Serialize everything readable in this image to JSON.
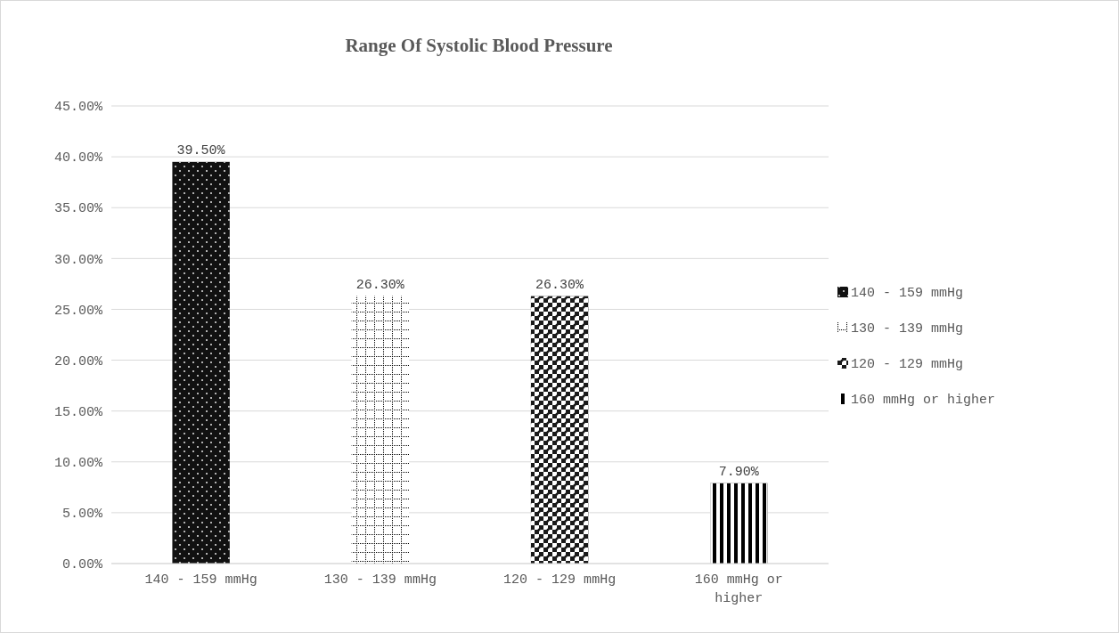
{
  "chart_data": {
    "type": "bar",
    "title": "Range Of Systolic Blood Pressure",
    "categories": [
      "140 - 159 mmHg",
      "130 - 139 mmHg",
      "120 - 129 mmHg",
      "160 mmHg or higher"
    ],
    "series": [
      {
        "name": "140 - 159 mmHg",
        "color": "#111111",
        "values": [
          39.5,
          null,
          null,
          null
        ],
        "value_labels": [
          "39.50%",
          null,
          null,
          null
        ]
      },
      {
        "name": "130 - 139 mmHg",
        "color": "#ffffff",
        "values": [
          null,
          26.3,
          null,
          null
        ],
        "value_labels": [
          null,
          "26.30%",
          null,
          null
        ]
      },
      {
        "name": "120 - 129 mmHg",
        "color": "#1a1a1a",
        "values": [
          null,
          null,
          26.3,
          null
        ],
        "value_labels": [
          null,
          null,
          "26.30%",
          null
        ]
      },
      {
        "name": "160 mmHg or higher",
        "color": "#000000",
        "values": [
          null,
          null,
          null,
          7.9
        ],
        "value_labels": [
          null,
          null,
          null,
          "7.90%"
        ]
      }
    ],
    "ylim": [
      0,
      45
    ],
    "yticks": [
      {
        "value": 0,
        "label": "0.00%"
      },
      {
        "value": 5,
        "label": "5.00%"
      },
      {
        "value": 10,
        "label": "10.00%"
      },
      {
        "value": 15,
        "label": "15.00%"
      },
      {
        "value": 20,
        "label": "20.00%"
      },
      {
        "value": 25,
        "label": "25.00%"
      },
      {
        "value": 30,
        "label": "30.00%"
      },
      {
        "value": 35,
        "label": "35.00%"
      },
      {
        "value": 40,
        "label": "40.00%"
      },
      {
        "value": 45,
        "label": "45.00%"
      }
    ],
    "grid": "y",
    "legend": "right"
  }
}
